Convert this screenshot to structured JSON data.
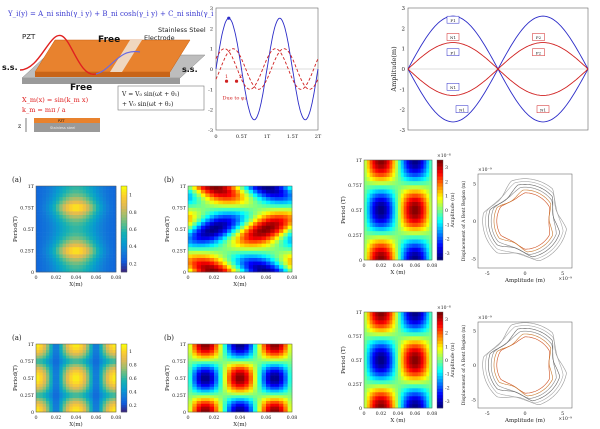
{
  "schematic": {
    "eq_y": "Y_i(y) = A_ni sinh(γ_i y) + B_ni cosh(γ_i y) + C_ni sinh(γ_i y) + D_ni cosh(γ_i y)",
    "pzt": "PZT",
    "free1": "Free",
    "free2": "Free",
    "electrode": "Electrode",
    "stainless": "Stainless Steel",
    "ss_left": "s.s.",
    "ss_right": "s.s.",
    "eq_x": "X_m(x) = sin(k_m x)",
    "eq_k": "k_m = mπ / a",
    "eq_v1": "V = V₀ sin(ωt + θ₁)",
    "eq_v2": "+ V₀ sin(ωt + θ₂)",
    "pzt_small": "PZT",
    "steel_small": "Stainless steel",
    "z_label": "z"
  },
  "chart_data": [
    {
      "type": "line",
      "title": "",
      "xlabel": "",
      "ylabel": "",
      "xlim": [
        0,
        2
      ],
      "ylim": [
        -3,
        3
      ],
      "x_ticks": [
        "0",
        "0.5T",
        "1T",
        "1.5T",
        "2T"
      ],
      "y_ticks": [
        "3",
        "2",
        "1",
        "0",
        "-1",
        "-2",
        "-3"
      ],
      "series": [
        {
          "name": "total",
          "style": "solid",
          "color": "#2c2cc8",
          "amplitude": 2.5,
          "phase_deg": 0
        },
        {
          "name": "phase 1",
          "style": "dashed",
          "color": "#d02020",
          "amplitude": 1.0,
          "phase_deg": 30
        },
        {
          "name": "phase 2",
          "style": "dashed",
          "color": "#d02020",
          "amplitude": 1.0,
          "phase_deg": -30
        }
      ],
      "annotations": [
        "1",
        "2",
        "Due to φ₁"
      ]
    },
    {
      "type": "line",
      "title": "",
      "xlabel": "",
      "ylabel": "Amplitude(m)",
      "xlim": [
        0,
        2
      ],
      "ylim": [
        -3,
        3
      ],
      "y_ticks": [
        "3",
        "2",
        "1",
        "0",
        "-1",
        "-2",
        "-3"
      ],
      "series": [
        {
          "name": "P1",
          "color": "#2c2cc8",
          "amplitude": 2.6
        },
        {
          "name": "P2",
          "color": "#2c2cc8",
          "amplitude": -2.6
        },
        {
          "name": "N1",
          "color": "#d02020",
          "amplitude": 1.3
        },
        {
          "name": "N2",
          "color": "#d02020",
          "amplitude": -1.3
        }
      ],
      "legend_boxes": [
        "P1",
        "N1",
        "P1",
        "P2",
        "N1",
        "P2",
        "N1",
        "N1"
      ]
    },
    {
      "type": "heatmap",
      "panel": "(a)",
      "xlabel": "X(m)",
      "ylabel": "Period(T)",
      "x_ticks": [
        "0",
        "0.02",
        "0.04",
        "0.06",
        "0.08"
      ],
      "y_ticks": [
        "1T",
        "0.75T",
        "0.5T",
        "0.25T",
        "0"
      ],
      "colorbar": [
        "1",
        "0.8",
        "0.6",
        "0.4",
        "0.2"
      ],
      "colormap": "parula",
      "field": "|sin(kx)| magnitude, centered peak"
    },
    {
      "type": "heatmap",
      "panel": "(b)",
      "xlabel": "X(m)",
      "ylabel": "Period(T)",
      "x_ticks": [
        "0",
        "0.02",
        "0.04",
        "0.06",
        "0.08"
      ],
      "y_ticks": [
        "1T",
        "0.75T",
        "0.5T",
        "0.25T",
        "0"
      ],
      "colormap": "jet",
      "field": "sin(2πx/a)·cos(2πt)"
    },
    {
      "type": "heatmap",
      "panel": "",
      "xlabel": "X (m)",
      "ylabel": "Period (T)",
      "x_ticks": [
        "0",
        "0.02",
        "0.04",
        "0.06",
        "0.08"
      ],
      "y_ticks": [
        "1T",
        "0.75T",
        "0.5T",
        "0.25T",
        "0"
      ],
      "colorbar": [
        "3",
        "2",
        "1",
        "0",
        "-1",
        "-2",
        "-3"
      ],
      "colorbar_exp": "×10⁻⁸",
      "cbar_label": "Amplitude (m)",
      "colormap": "jet"
    },
    {
      "type": "scatter",
      "xlabel": "Amplitude (m)",
      "ylabel": "Displacement of A Bent Region (m)",
      "x_ticks": [
        "-5",
        "0",
        "5"
      ],
      "y_ticks": [
        "5",
        "0",
        "-5"
      ],
      "exp": "×10⁻⁹",
      "shape": "petal orbit"
    },
    {
      "type": "heatmap",
      "panel": "(a)",
      "xlabel": "X(m)",
      "ylabel": "Period(T)",
      "x_ticks": [
        "0",
        "0.02",
        "0.04",
        "0.06",
        "0.08"
      ],
      "y_ticks": [
        "1T",
        "0.75T",
        "0.5T",
        "0.25T",
        "0"
      ],
      "colorbar": [
        "1",
        "0.8",
        "0.6",
        "0.4",
        "0.2"
      ],
      "colormap": "parula"
    },
    {
      "type": "heatmap",
      "panel": "(b)",
      "xlabel": "X(m)",
      "ylabel": "Period(T)",
      "x_ticks": [
        "0",
        "0.02",
        "0.04",
        "0.06",
        "0.08"
      ],
      "y_ticks": [
        "1T",
        "0.75T",
        "0.5T",
        "0.25T",
        "0"
      ],
      "colormap": "jet"
    },
    {
      "type": "heatmap",
      "panel": "",
      "xlabel": "X (m)",
      "ylabel": "Period (T)",
      "x_ticks": [
        "0",
        "0.02",
        "0.04",
        "0.06",
        "0.08"
      ],
      "y_ticks": [
        "1T",
        "0.75T",
        "0.5T",
        "0.25T",
        "0"
      ],
      "colorbar": [
        "3",
        "2",
        "1",
        "0",
        "-1",
        "-2",
        "-3"
      ],
      "colorbar_exp": "×10⁻⁸",
      "cbar_label": "Amplitude (m)",
      "colormap": "jet"
    },
    {
      "type": "scatter",
      "xlabel": "Amplitude (m)",
      "ylabel": "Displacement of A Bent Region (m)",
      "x_ticks": [
        "-5",
        "0",
        "5"
      ],
      "y_ticks": [
        "5",
        "0",
        "-5"
      ],
      "exp": "×10⁻⁹",
      "shape": "petal orbit"
    }
  ]
}
